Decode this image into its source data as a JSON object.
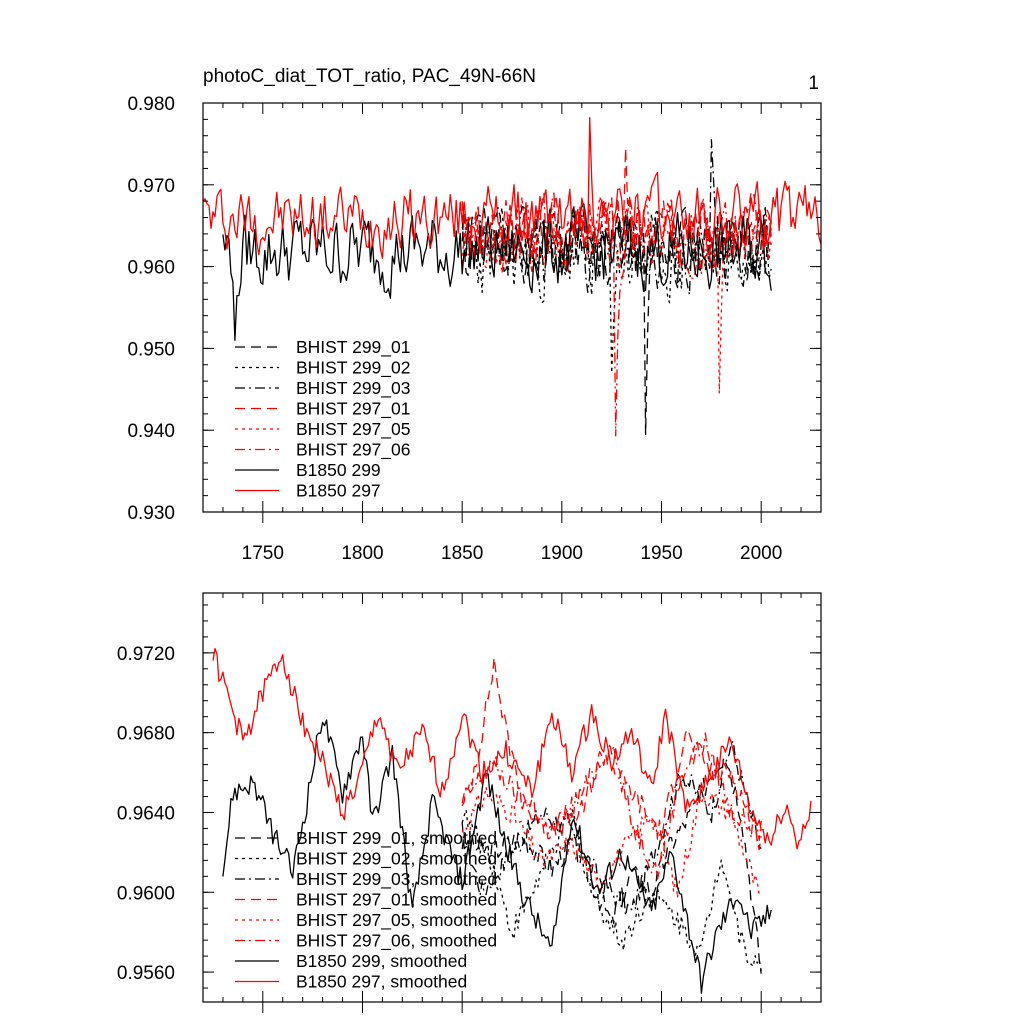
{
  "chart_data": [
    {
      "type": "line",
      "title": "photoC_diat_TOT_ratio, PAC_49N-66N",
      "panel_label": "1",
      "xlim": [
        1720,
        2030
      ],
      "ylim": [
        0.93,
        0.98
      ],
      "x_ticks": [
        1750,
        1800,
        1850,
        1900,
        1950,
        2000
      ],
      "x_tick_labels": [
        "1750",
        "1800",
        "1850",
        "1900",
        "1950",
        "2000"
      ],
      "y_ticks": [
        0.93,
        0.94,
        0.95,
        0.96,
        0.97,
        0.98
      ],
      "y_tick_labels": [
        "0.930",
        "0.940",
        "0.950",
        "0.960",
        "0.970",
        "0.980"
      ],
      "series": [
        {
          "name": "BHIST 299_01",
          "color": "#000000",
          "dash": "long-dash",
          "x_start": 1850,
          "x_end": 2005,
          "mean": 0.9625,
          "amp": 0.0065,
          "seed": 11,
          "dip": [
            1942,
            0.9395
          ]
        },
        {
          "name": "BHIST 299_02",
          "color": "#000000",
          "dash": "short-dash",
          "x_start": 1850,
          "x_end": 2005,
          "mean": 0.961,
          "amp": 0.007,
          "seed": 23,
          "dip": [
            1925,
            0.947
          ]
        },
        {
          "name": "BHIST 299_03",
          "color": "#000000",
          "dash": "dash-dot",
          "x_start": 1850,
          "x_end": 2005,
          "mean": 0.962,
          "amp": 0.0065,
          "seed": 37,
          "dip": [
            1975,
            0.9755
          ]
        },
        {
          "name": "BHIST 297_01",
          "color": "#ff0000",
          "dash": "long-dash",
          "x_start": 1850,
          "x_end": 2005,
          "mean": 0.9645,
          "amp": 0.006,
          "seed": 41,
          "dip": [
            1932,
            0.9745
          ]
        },
        {
          "name": "BHIST 297_05",
          "color": "#ff0000",
          "dash": "short-dash",
          "x_start": 1850,
          "x_end": 2005,
          "mean": 0.964,
          "amp": 0.006,
          "seed": 53,
          "dip": [
            1979,
            0.9445
          ]
        },
        {
          "name": "BHIST 297_06",
          "color": "#ff0000",
          "dash": "dash-dot",
          "x_start": 1850,
          "x_end": 2005,
          "mean": 0.964,
          "amp": 0.006,
          "seed": 67,
          "dip": [
            1927,
            0.9393
          ]
        },
        {
          "name": "B1850 299",
          "color": "#000000",
          "dash": "solid",
          "x_start": 1730,
          "x_end": 2005,
          "mean": 0.962,
          "amp": 0.0065,
          "seed": 79,
          "dip": [
            1736,
            0.951
          ]
        },
        {
          "name": "B1850 297",
          "color": "#ff0000",
          "dash": "solid",
          "x_start": 1720,
          "x_end": 2030,
          "mean": 0.966,
          "amp": 0.0055,
          "seed": 97,
          "dip": [
            1914,
            0.9782
          ]
        }
      ]
    },
    {
      "type": "line",
      "title": "",
      "xlim": [
        1720,
        2030
      ],
      "ylim": [
        0.9545,
        0.975
      ],
      "x_ticks": [
        1750,
        1800,
        1850,
        1900,
        1950,
        2000
      ],
      "x_tick_labels": [],
      "y_ticks": [
        0.956,
        0.96,
        0.964,
        0.968,
        0.972
      ],
      "y_tick_labels": [
        "0.9560",
        "0.9600",
        "0.9640",
        "0.9680",
        "0.9720"
      ],
      "series": [
        {
          "name": "BHIST 299_01, smoothed",
          "color": "#000000",
          "dash": "long-dash",
          "x_start": 1850,
          "x_end": 2000,
          "x": [
            1850,
            1865,
            1880,
            1895,
            1905,
            1915,
            1925,
            1935,
            1945,
            1955,
            1965,
            1975,
            1982,
            1990,
            2000
          ],
          "y": [
            0.9625,
            0.962,
            0.9628,
            0.9612,
            0.9625,
            0.9605,
            0.9585,
            0.961,
            0.96,
            0.9625,
            0.964,
            0.966,
            0.967,
            0.964,
            0.956
          ]
        },
        {
          "name": "BHIST 299_02, smoothed",
          "color": "#000000",
          "dash": "short-dash",
          "x_start": 1850,
          "x_end": 2000,
          "x": [
            1850,
            1865,
            1875,
            1890,
            1905,
            1915,
            1930,
            1945,
            1955,
            1970,
            1980,
            1990,
            2000
          ],
          "y": [
            0.964,
            0.9615,
            0.958,
            0.961,
            0.964,
            0.96,
            0.9575,
            0.96,
            0.959,
            0.957,
            0.962,
            0.9575,
            0.956
          ]
        },
        {
          "name": "BHIST 299_03, smoothed",
          "color": "#000000",
          "dash": "dash-dot",
          "x_start": 1850,
          "x_end": 2000,
          "x": [
            1850,
            1860,
            1875,
            1890,
            1905,
            1920,
            1935,
            1950,
            1960,
            1975,
            1985,
            2000
          ],
          "y": [
            0.963,
            0.96,
            0.962,
            0.964,
            0.963,
            0.9605,
            0.959,
            0.963,
            0.966,
            0.964,
            0.9675,
            0.962
          ]
        },
        {
          "name": "BHIST 297_01, smoothed",
          "color": "#ff0000",
          "dash": "long-dash",
          "x_start": 1850,
          "x_end": 2000,
          "x": [
            1850,
            1858,
            1866,
            1872,
            1880,
            1895,
            1910,
            1920,
            1935,
            1950,
            1962,
            1975,
            1985,
            2000
          ],
          "y": [
            0.964,
            0.967,
            0.9715,
            0.968,
            0.965,
            0.963,
            0.964,
            0.967,
            0.965,
            0.963,
            0.968,
            0.966,
            0.966,
            0.9625
          ]
        },
        {
          "name": "BHIST 297_05, smoothed",
          "color": "#ff0000",
          "dash": "short-dash",
          "x_start": 1850,
          "x_end": 2000,
          "x": [
            1850,
            1862,
            1875,
            1890,
            1905,
            1918,
            1930,
            1945,
            1958,
            1970,
            1985,
            2000
          ],
          "y": [
            0.963,
            0.965,
            0.964,
            0.9615,
            0.9625,
            0.9605,
            0.962,
            0.964,
            0.96,
            0.965,
            0.964,
            0.9595
          ]
        },
        {
          "name": "BHIST 297_06, smoothed",
          "color": "#ff0000",
          "dash": "dash-dot",
          "x_start": 1850,
          "x_end": 2000,
          "x": [
            1850,
            1865,
            1880,
            1895,
            1910,
            1925,
            1935,
            1948,
            1960,
            1972,
            1985,
            2000
          ],
          "y": [
            0.9645,
            0.9665,
            0.9645,
            0.963,
            0.965,
            0.9675,
            0.9635,
            0.961,
            0.966,
            0.9675,
            0.964,
            0.963
          ]
        },
        {
          "name": "B1850 299, smoothed",
          "color": "#000000",
          "dash": "solid",
          "x_start": 1730,
          "x_end": 2005,
          "x": [
            1730,
            1735,
            1745,
            1755,
            1765,
            1772,
            1780,
            1790,
            1800,
            1805,
            1815,
            1825,
            1835,
            1850,
            1862,
            1870,
            1880,
            1895,
            1905,
            1918,
            1930,
            1945,
            1955,
            1962,
            1970,
            1978,
            1988,
            1995,
            2005
          ],
          "y": [
            0.961,
            0.965,
            0.9655,
            0.963,
            0.961,
            0.9645,
            0.969,
            0.965,
            0.968,
            0.9635,
            0.967,
            0.959,
            0.9645,
            0.9605,
            0.966,
            0.963,
            0.96,
            0.957,
            0.964,
            0.96,
            0.962,
            0.959,
            0.962,
            0.959,
            0.9555,
            0.958,
            0.96,
            0.958,
            0.959
          ]
        },
        {
          "name": "B1850 297, smoothed",
          "color": "#ff0000",
          "dash": "solid",
          "x_start": 1725,
          "x_end": 2025,
          "x": [
            1725,
            1732,
            1740,
            1750,
            1760,
            1768,
            1778,
            1790,
            1798,
            1808,
            1818,
            1830,
            1840,
            1850,
            1860,
            1872,
            1885,
            1895,
            1905,
            1915,
            1925,
            1935,
            1945,
            1952,
            1962,
            1975,
            1985,
            1995,
            2005,
            2012,
            2018,
            2025
          ],
          "y": [
            0.972,
            0.97,
            0.9675,
            0.97,
            0.972,
            0.969,
            0.967,
            0.964,
            0.9655,
            0.969,
            0.966,
            0.968,
            0.965,
            0.969,
            0.966,
            0.967,
            0.965,
            0.969,
            0.966,
            0.969,
            0.9665,
            0.968,
            0.965,
            0.969,
            0.964,
            0.966,
            0.9675,
            0.964,
            0.9625,
            0.9645,
            0.9625,
            0.964
          ]
        }
      ]
    }
  ]
}
